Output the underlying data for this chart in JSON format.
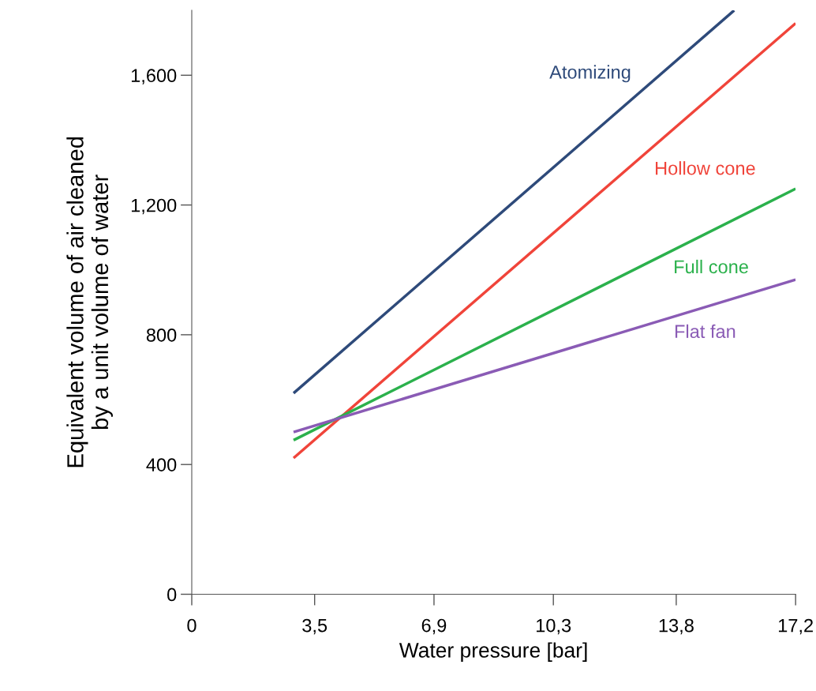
{
  "chart_data": {
    "type": "line",
    "xlabel": "Water pressure [bar]",
    "ylabel": "Equivalent volume of air cleaned\nby a unit volume of water",
    "xlim": [
      0,
      17.2
    ],
    "ylim": [
      0,
      1800
    ],
    "xticks": [
      0,
      {
        "value": 3.5,
        "label": "3,5"
      },
      {
        "value": 6.9,
        "label": "6,9"
      },
      {
        "value": 10.3,
        "label": "10,3"
      },
      {
        "value": 13.8,
        "label": "13,8"
      },
      {
        "value": 17.2,
        "label": "17,2"
      }
    ],
    "yticks": [
      0,
      400,
      800,
      {
        "value": 1200,
        "label": "1,200"
      },
      {
        "value": 1600,
        "label": "1,600"
      }
    ],
    "grid": false,
    "legend": false,
    "line_style": "solid",
    "marker": "none",
    "series": [
      {
        "name": "Atomizing",
        "color": "#2e4a7a",
        "x": [
          2.9,
          15.45
        ],
        "values": [
          620,
          1800
        ]
      },
      {
        "name": "Hollow cone",
        "color": "#f0443a",
        "x": [
          2.9,
          17.2
        ],
        "values": [
          420,
          1760
        ]
      },
      {
        "name": "Full cone",
        "color": "#2bb14c",
        "x": [
          2.9,
          17.2
        ],
        "values": [
          475,
          1250
        ]
      },
      {
        "name": "Flat fan",
        "color": "#8a5bb5",
        "x": [
          2.9,
          17.2
        ],
        "values": [
          500,
          970
        ]
      }
    ]
  }
}
